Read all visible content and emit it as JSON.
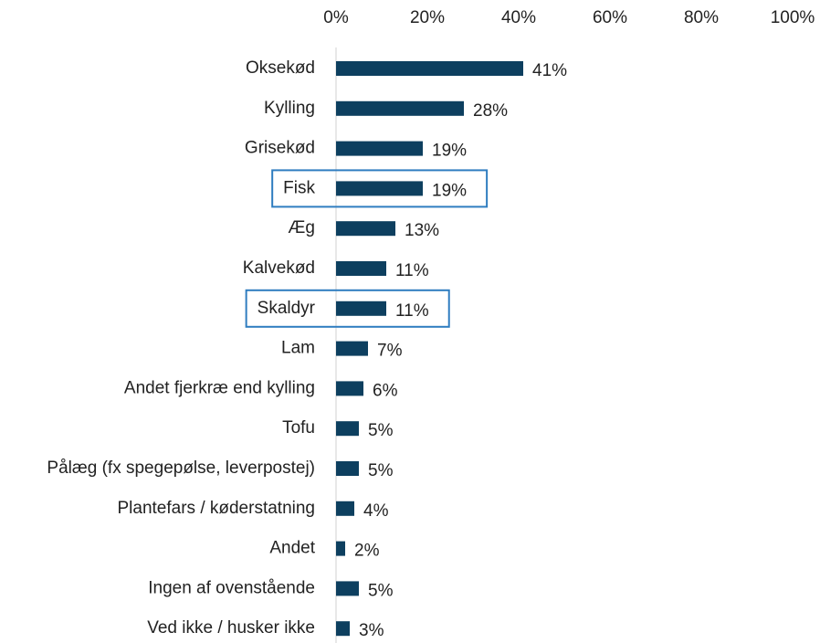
{
  "chart_data": {
    "type": "bar",
    "orientation": "horizontal",
    "categories": [
      "Oksekød",
      "Kylling",
      "Grisekød",
      "Fisk",
      "Æg",
      "Kalvekød",
      "Skaldyr",
      "Lam",
      "Andet fjerkræ end kylling",
      "Tofu",
      "Pålæg (fx spegepølse, leverpostej)",
      "Plantefars / køderstatning",
      "Andet",
      "Ingen af ovenstående",
      "Ved ikke / husker ikke"
    ],
    "values": [
      41,
      28,
      19,
      19,
      13,
      11,
      11,
      7,
      6,
      5,
      5,
      4,
      2,
      5,
      3
    ],
    "value_labels": [
      "41%",
      "28%",
      "19%",
      "19%",
      "13%",
      "11%",
      "11%",
      "7%",
      "6%",
      "5%",
      "5%",
      "4%",
      "2%",
      "5%",
      "3%"
    ],
    "color": "#0d3f5f",
    "xlim": [
      0,
      100
    ],
    "xticks": [
      {
        "value": 0,
        "label": "0%"
      },
      {
        "value": 20,
        "label": "20%"
      },
      {
        "value": 40,
        "label": "40%"
      },
      {
        "value": 60,
        "label": "60%"
      },
      {
        "value": 80,
        "label": "80%"
      },
      {
        "value": 100,
        "label": "100%"
      }
    ],
    "axis_position": "top",
    "grid": false,
    "highlighted": [
      3,
      6
    ],
    "highlight_color": "#2f7dc0"
  }
}
